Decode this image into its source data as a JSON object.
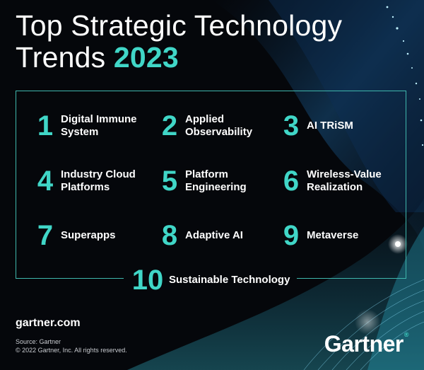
{
  "header": {
    "title_line1": "Top Strategic Technology",
    "title_line2_prefix": "Trends",
    "title_year": "2023"
  },
  "trends": [
    {
      "number": "1",
      "line1": "Digital Immune",
      "line2": "System"
    },
    {
      "number": "2",
      "line1": "Applied",
      "line2": "Observability"
    },
    {
      "number": "3",
      "line1": "AI TRiSM",
      "line2": ""
    },
    {
      "number": "4",
      "line1": "Industry Cloud",
      "line2": "Platforms"
    },
    {
      "number": "5",
      "line1": "Platform",
      "line2": "Engineering"
    },
    {
      "number": "6",
      "line1": "Wireless-Value",
      "line2": "Realization"
    },
    {
      "number": "7",
      "line1": "Superapps",
      "line2": ""
    },
    {
      "number": "8",
      "line1": "Adaptive AI",
      "line2": ""
    },
    {
      "number": "9",
      "line1": "Metaverse",
      "line2": ""
    },
    {
      "number": "10",
      "line1": "Sustainable Technology",
      "line2": ""
    }
  ],
  "footer": {
    "site": "gartner.com",
    "source": "Source: Gartner",
    "copyright": "© 2022 Gartner, Inc. All rights reserved.",
    "logo": "Gartner",
    "logo_mark": "®"
  },
  "colors": {
    "accent": "#40d6c7",
    "background": "#05070b",
    "text": "#ffffff"
  }
}
